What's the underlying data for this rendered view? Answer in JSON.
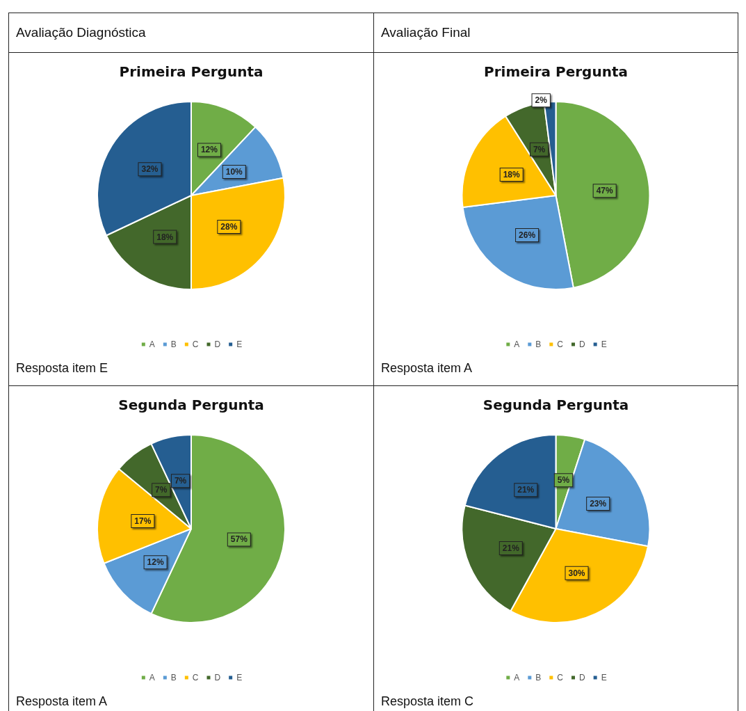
{
  "chart_data": [
    {
      "type": "pie",
      "title": "Primeira Pergunta",
      "categories": [
        "A",
        "B",
        "C",
        "D",
        "E"
      ],
      "values": [
        12,
        10,
        28,
        18,
        32
      ],
      "value_labels": [
        "12%",
        "10%",
        "28%",
        "18%",
        "32%"
      ],
      "colors": [
        "#70ad47",
        "#5b9bd5",
        "#ffc000",
        "#43682b",
        "#255e91"
      ],
      "legend": "bottom",
      "annotations": [
        "Avaliação Diagnóstica",
        "Resposta item E"
      ]
    },
    {
      "type": "pie",
      "title": "Primeira Pergunta",
      "categories": [
        "A",
        "B",
        "C",
        "D",
        "E"
      ],
      "values": [
        47,
        26,
        18,
        7,
        2
      ],
      "value_labels": [
        "47%",
        "26%",
        "18%",
        "7%",
        "2%"
      ],
      "colors": [
        "#70ad47",
        "#5b9bd5",
        "#ffc000",
        "#43682b",
        "#255e91"
      ],
      "legend": "bottom",
      "annotations": [
        "Avaliação Final",
        "Resposta item A"
      ]
    },
    {
      "type": "pie",
      "title": "Segunda Pergunta",
      "categories": [
        "A",
        "B",
        "C",
        "D",
        "E"
      ],
      "values": [
        57,
        12,
        17,
        7,
        7
      ],
      "value_labels": [
        "57%",
        "12%",
        "17%",
        "7%",
        "7%"
      ],
      "colors": [
        "#70ad47",
        "#5b9bd5",
        "#ffc000",
        "#43682b",
        "#255e91"
      ],
      "legend": "bottom",
      "annotations": [
        "Resposta item A"
      ]
    },
    {
      "type": "pie",
      "title": "Segunda Pergunta",
      "categories": [
        "A",
        "B",
        "C",
        "D",
        "E"
      ],
      "values": [
        5,
        23,
        30,
        21,
        21
      ],
      "value_labels": [
        "5%",
        "23%",
        "30%",
        "21%",
        "21%"
      ],
      "colors": [
        "#70ad47",
        "#5b9bd5",
        "#ffc000",
        "#43682b",
        "#255e91"
      ],
      "legend": "bottom",
      "annotations": [
        "Resposta item C"
      ]
    }
  ]
}
